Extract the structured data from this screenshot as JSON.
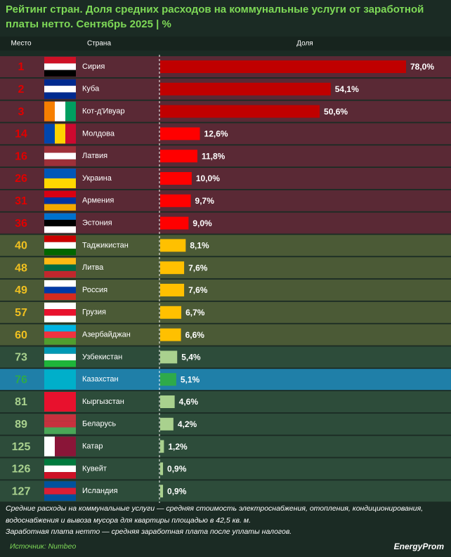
{
  "chart_data": {
    "type": "bar",
    "title": "Рейтинг стран. Доля средних расходов на коммунальные услуги от заработной платы нетто. Сентябрь 2025 | %",
    "column_headers": [
      "Место",
      "Страна",
      "Доля"
    ],
    "ranks": [
      1,
      2,
      3,
      14,
      16,
      26,
      31,
      36,
      40,
      48,
      49,
      57,
      60,
      73,
      76,
      81,
      89,
      125,
      126,
      127
    ],
    "categories": [
      "Сирия",
      "Куба",
      "Кот-д'Ивуар",
      "Молдова",
      "Латвия",
      "Украина",
      "Армения",
      "Эстония",
      "Таджикистан",
      "Литва",
      "Россия",
      "Грузия",
      "Азербайджан",
      "Узбекистан",
      "Казахстан",
      "Кыргызстан",
      "Беларусь",
      "Катар",
      "Кувейт",
      "Исландия"
    ],
    "values": [
      78.0,
      54.1,
      50.6,
      12.6,
      11.8,
      10.0,
      9.7,
      9.0,
      8.1,
      7.6,
      7.6,
      6.7,
      6.6,
      5.4,
      5.1,
      4.6,
      4.2,
      1.2,
      0.9,
      0.9
    ],
    "value_labels": [
      "78,0%",
      "54,1%",
      "50,6%",
      "12,6%",
      "11,8%",
      "10,0%",
      "9,7%",
      "9,0%",
      "8,1%",
      "7,6%",
      "7,6%",
      "6,7%",
      "6,6%",
      "5,4%",
      "5,1%",
      "4,6%",
      "4,2%",
      "1,2%",
      "0,9%",
      "0,9%"
    ],
    "colors": [
      "#c00000",
      "#c00000",
      "#c00000",
      "#ff0000",
      "#ff0000",
      "#ff0000",
      "#ff0000",
      "#ff0000",
      "#ffc000",
      "#ffc000",
      "#ffc000",
      "#ffc000",
      "#ffc000",
      "#a9d18e",
      "#2eaa4a",
      "#a9d18e",
      "#a9d18e",
      "#a9d18e",
      "#a9d18e",
      "#a9d18e"
    ]
  },
  "footer": {
    "notes": [
      "Средние расходы на коммунальные услуги — средняя стоимость электроснабжения, отопления, кондиционирования,",
      "водоснабжения и вывоза мусора для квартиры площадью в 42,5 кв. м.",
      "Заработная плата нетто — средняя заработная плата после уплаты налогов."
    ],
    "source": "Источник: Numbeo",
    "brand": "EnergyProm"
  }
}
